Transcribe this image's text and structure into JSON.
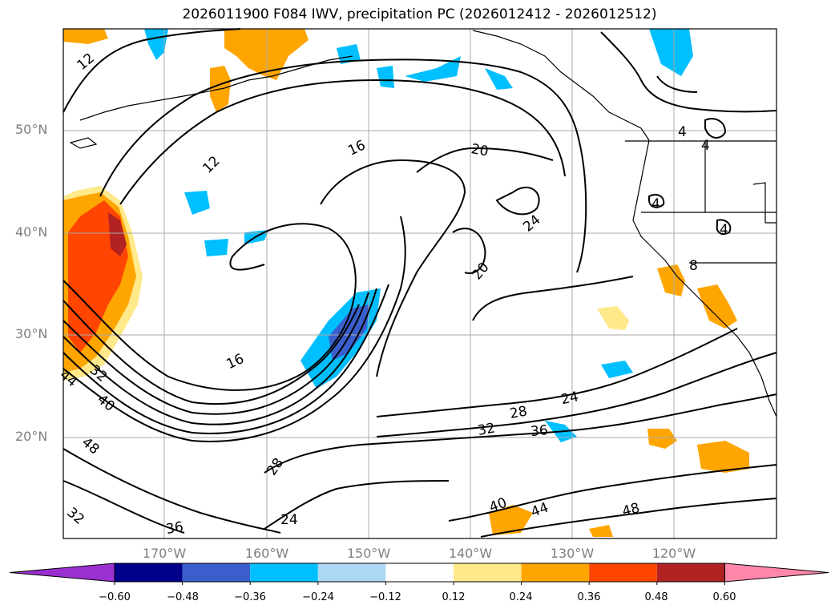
{
  "title": "2026011900 F084 IWV, precipitation PC (2026012412 - 2026012512)",
  "lat_labels": [
    "50°N",
    "40°N",
    "30°N",
    "20°N"
  ],
  "lon_labels": [
    "170°W",
    "160°W",
    "150°W",
    "140°W",
    "130°W",
    "120°W"
  ],
  "colorbar": {
    "ticks": [
      "−0.60",
      "−0.48",
      "−0.36",
      "−0.24",
      "−0.12",
      "0.12",
      "0.24",
      "0.36",
      "0.48",
      "0.60"
    ],
    "colors": [
      "#9b30d0",
      "#00008b",
      "#3a5fcd",
      "#00bfff",
      "#add8f5",
      "#ffffff",
      "#ffe98a",
      "#ffa500",
      "#ff4500",
      "#b22222",
      "#ff88aa"
    ]
  },
  "contour_labels": [
    "12",
    "12",
    "16",
    "16",
    "20",
    "20",
    "24",
    "24",
    "28",
    "28",
    "32",
    "32",
    "32",
    "36",
    "36",
    "40",
    "40",
    "44",
    "44",
    "48",
    "48",
    "24",
    "4",
    "4",
    "4",
    "4",
    "8"
  ]
}
